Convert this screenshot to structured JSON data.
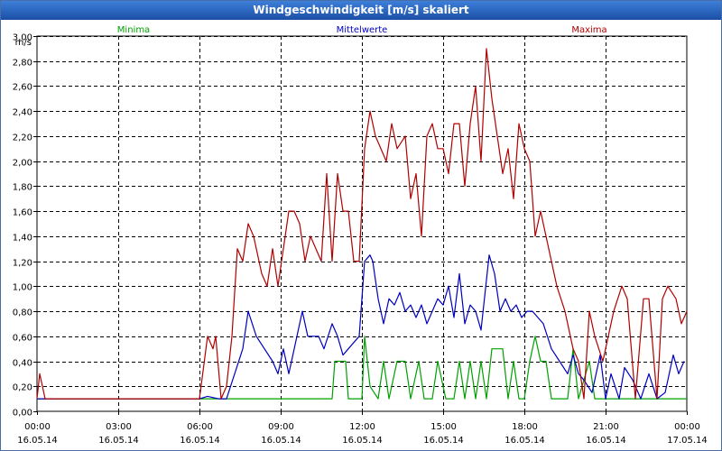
{
  "window": {
    "title": "Windgeschwindigkeit [m/s] skaliert"
  },
  "chart_data": {
    "type": "line",
    "title": "Windgeschwindigkeit [m/s] skaliert",
    "ylabel": "m/s",
    "ylim": [
      0,
      3
    ],
    "xlim": [
      0,
      24
    ],
    "grid": true,
    "y_ticks": [
      "0,00",
      "0,20",
      "0,40",
      "0,60",
      "0,80",
      "1,00",
      "1,20",
      "1,40",
      "1,60",
      "1,80",
      "2,00",
      "2,20",
      "2,40",
      "2,60",
      "2,80",
      "3,00"
    ],
    "x_ticks": [
      {
        "x": 0,
        "time": "00:00",
        "date": "16.05.14"
      },
      {
        "x": 3,
        "time": "03:00",
        "date": "16.05.14"
      },
      {
        "x": 6,
        "time": "06:00",
        "date": "16.05.14"
      },
      {
        "x": 9,
        "time": "09:00",
        "date": "16.05.14"
      },
      {
        "x": 12,
        "time": "12:00",
        "date": "16.05.14"
      },
      {
        "x": 15,
        "time": "15:00",
        "date": "16.05.14"
      },
      {
        "x": 18,
        "time": "18:00",
        "date": "16.05.14"
      },
      {
        "x": 21,
        "time": "21:00",
        "date": "16.05.14"
      },
      {
        "x": 24,
        "time": "00:00",
        "date": "17.05.14"
      }
    ],
    "series": [
      {
        "name": "Minima",
        "color": "#00a000",
        "legend_position": "left",
        "points": [
          [
            0,
            0.1
          ],
          [
            6,
            0.1
          ],
          [
            6.3,
            0.1
          ],
          [
            7,
            0.1
          ],
          [
            7.5,
            0.1
          ],
          [
            8,
            0.1
          ],
          [
            10.9,
            0.1
          ],
          [
            11,
            0.4
          ],
          [
            11.4,
            0.4
          ],
          [
            11.5,
            0.1
          ],
          [
            12,
            0.1
          ],
          [
            12.1,
            0.6
          ],
          [
            12.3,
            0.2
          ],
          [
            12.6,
            0.1
          ],
          [
            12.8,
            0.4
          ],
          [
            13,
            0.1
          ],
          [
            13.3,
            0.4
          ],
          [
            13.6,
            0.4
          ],
          [
            13.8,
            0.1
          ],
          [
            14.1,
            0.4
          ],
          [
            14.3,
            0.1
          ],
          [
            14.6,
            0.1
          ],
          [
            14.8,
            0.4
          ],
          [
            15.1,
            0.1
          ],
          [
            15.4,
            0.1
          ],
          [
            15.6,
            0.4
          ],
          [
            15.8,
            0.1
          ],
          [
            16,
            0.4
          ],
          [
            16.2,
            0.1
          ],
          [
            16.4,
            0.4
          ],
          [
            16.6,
            0.1
          ],
          [
            16.8,
            0.5
          ],
          [
            17.2,
            0.5
          ],
          [
            17.4,
            0.1
          ],
          [
            17.6,
            0.4
          ],
          [
            17.8,
            0.1
          ],
          [
            18,
            0.1
          ],
          [
            18.2,
            0.4
          ],
          [
            18.4,
            0.6
          ],
          [
            18.6,
            0.4
          ],
          [
            18.8,
            0.4
          ],
          [
            19,
            0.1
          ],
          [
            19.3,
            0.1
          ],
          [
            19.6,
            0.1
          ],
          [
            19.8,
            0.5
          ],
          [
            20,
            0.1
          ],
          [
            20.4,
            0.4
          ],
          [
            20.6,
            0.1
          ],
          [
            21,
            0.1
          ],
          [
            24,
            0.1
          ]
        ]
      },
      {
        "name": "Mittelwerte",
        "color": "#0000c0",
        "legend_position": "center",
        "points": [
          [
            0,
            0.1
          ],
          [
            6,
            0.1
          ],
          [
            6.3,
            0.12
          ],
          [
            6.7,
            0.1
          ],
          [
            7,
            0.1
          ],
          [
            7.3,
            0.3
          ],
          [
            7.6,
            0.5
          ],
          [
            7.8,
            0.8
          ],
          [
            8.1,
            0.6
          ],
          [
            8.4,
            0.5
          ],
          [
            8.7,
            0.4
          ],
          [
            8.9,
            0.3
          ],
          [
            9.1,
            0.5
          ],
          [
            9.3,
            0.3
          ],
          [
            9.5,
            0.5
          ],
          [
            9.8,
            0.8
          ],
          [
            10.0,
            0.6
          ],
          [
            10.2,
            0.6
          ],
          [
            10.4,
            0.6
          ],
          [
            10.6,
            0.5
          ],
          [
            10.9,
            0.7
          ],
          [
            11.1,
            0.6
          ],
          [
            11.3,
            0.45
          ],
          [
            11.5,
            0.5
          ],
          [
            11.7,
            0.55
          ],
          [
            11.9,
            0.6
          ],
          [
            12.1,
            1.2
          ],
          [
            12.3,
            1.25
          ],
          [
            12.4,
            1.2
          ],
          [
            12.6,
            0.9
          ],
          [
            12.8,
            0.7
          ],
          [
            13.0,
            0.9
          ],
          [
            13.2,
            0.85
          ],
          [
            13.4,
            0.95
          ],
          [
            13.6,
            0.8
          ],
          [
            13.8,
            0.85
          ],
          [
            14.0,
            0.75
          ],
          [
            14.2,
            0.85
          ],
          [
            14.4,
            0.7
          ],
          [
            14.6,
            0.8
          ],
          [
            14.8,
            0.9
          ],
          [
            15.0,
            0.85
          ],
          [
            15.2,
            1.0
          ],
          [
            15.4,
            0.75
          ],
          [
            15.6,
            1.1
          ],
          [
            15.8,
            0.7
          ],
          [
            16.0,
            0.85
          ],
          [
            16.2,
            0.8
          ],
          [
            16.4,
            0.65
          ],
          [
            16.7,
            1.25
          ],
          [
            16.9,
            1.1
          ],
          [
            17.1,
            0.8
          ],
          [
            17.3,
            0.9
          ],
          [
            17.5,
            0.8
          ],
          [
            17.7,
            0.85
          ],
          [
            17.9,
            0.75
          ],
          [
            18.1,
            0.8
          ],
          [
            18.3,
            0.8
          ],
          [
            18.5,
            0.75
          ],
          [
            18.7,
            0.7
          ],
          [
            19.0,
            0.5
          ],
          [
            19.3,
            0.4
          ],
          [
            19.6,
            0.3
          ],
          [
            19.8,
            0.45
          ],
          [
            20.0,
            0.3
          ],
          [
            20.2,
            0.25
          ],
          [
            20.5,
            0.15
          ],
          [
            20.8,
            0.45
          ],
          [
            21.0,
            0.1
          ],
          [
            21.2,
            0.3
          ],
          [
            21.5,
            0.1
          ],
          [
            21.7,
            0.35
          ],
          [
            22.0,
            0.25
          ],
          [
            22.3,
            0.1
          ],
          [
            22.6,
            0.3
          ],
          [
            22.9,
            0.1
          ],
          [
            23.2,
            0.15
          ],
          [
            23.5,
            0.45
          ],
          [
            23.7,
            0.3
          ],
          [
            23.9,
            0.4
          ]
        ]
      },
      {
        "name": "Maxima",
        "color": "#b00000",
        "legend_position": "right",
        "points": [
          [
            0,
            0.1
          ],
          [
            0.1,
            0.3
          ],
          [
            0.3,
            0.1
          ],
          [
            6,
            0.1
          ],
          [
            6.3,
            0.6
          ],
          [
            6.5,
            0.5
          ],
          [
            6.6,
            0.6
          ],
          [
            6.8,
            0.1
          ],
          [
            7.0,
            0.2
          ],
          [
            7.2,
            0.6
          ],
          [
            7.4,
            1.3
          ],
          [
            7.6,
            1.2
          ],
          [
            7.8,
            1.5
          ],
          [
            8.0,
            1.4
          ],
          [
            8.3,
            1.1
          ],
          [
            8.5,
            1.0
          ],
          [
            8.7,
            1.3
          ],
          [
            8.9,
            1.0
          ],
          [
            9.1,
            1.3
          ],
          [
            9.3,
            1.6
          ],
          [
            9.5,
            1.6
          ],
          [
            9.7,
            1.5
          ],
          [
            9.9,
            1.2
          ],
          [
            10.1,
            1.4
          ],
          [
            10.3,
            1.3
          ],
          [
            10.5,
            1.2
          ],
          [
            10.7,
            1.9
          ],
          [
            10.9,
            1.2
          ],
          [
            11.1,
            1.9
          ],
          [
            11.3,
            1.6
          ],
          [
            11.5,
            1.6
          ],
          [
            11.7,
            1.2
          ],
          [
            11.9,
            1.2
          ],
          [
            12.1,
            2.1
          ],
          [
            12.3,
            2.4
          ],
          [
            12.5,
            2.2
          ],
          [
            12.7,
            2.1
          ],
          [
            12.9,
            2.0
          ],
          [
            13.1,
            2.3
          ],
          [
            13.3,
            2.1
          ],
          [
            13.6,
            2.2
          ],
          [
            13.8,
            1.7
          ],
          [
            14.0,
            1.9
          ],
          [
            14.2,
            1.4
          ],
          [
            14.4,
            2.2
          ],
          [
            14.6,
            2.3
          ],
          [
            14.8,
            2.1
          ],
          [
            15.0,
            2.1
          ],
          [
            15.2,
            1.9
          ],
          [
            15.4,
            2.3
          ],
          [
            15.6,
            2.3
          ],
          [
            15.8,
            1.8
          ],
          [
            16.0,
            2.3
          ],
          [
            16.2,
            2.6
          ],
          [
            16.4,
            2.0
          ],
          [
            16.6,
            2.9
          ],
          [
            16.8,
            2.5
          ],
          [
            17.0,
            2.2
          ],
          [
            17.2,
            1.9
          ],
          [
            17.4,
            2.1
          ],
          [
            17.6,
            1.7
          ],
          [
            17.8,
            2.3
          ],
          [
            18.0,
            2.1
          ],
          [
            18.2,
            2.0
          ],
          [
            18.4,
            1.4
          ],
          [
            18.6,
            1.6
          ],
          [
            18.8,
            1.4
          ],
          [
            19.0,
            1.2
          ],
          [
            19.2,
            1.0
          ],
          [
            19.5,
            0.8
          ],
          [
            19.8,
            0.5
          ],
          [
            20.0,
            0.4
          ],
          [
            20.2,
            0.1
          ],
          [
            20.4,
            0.8
          ],
          [
            20.6,
            0.6
          ],
          [
            20.9,
            0.4
          ],
          [
            21.1,
            0.6
          ],
          [
            21.3,
            0.8
          ],
          [
            21.6,
            1.0
          ],
          [
            21.8,
            0.9
          ],
          [
            22.1,
            0.1
          ],
          [
            22.4,
            0.9
          ],
          [
            22.6,
            0.9
          ],
          [
            22.9,
            0.1
          ],
          [
            23.1,
            0.9
          ],
          [
            23.3,
            1.0
          ],
          [
            23.6,
            0.9
          ],
          [
            23.8,
            0.7
          ],
          [
            24.0,
            0.8
          ]
        ]
      }
    ]
  }
}
